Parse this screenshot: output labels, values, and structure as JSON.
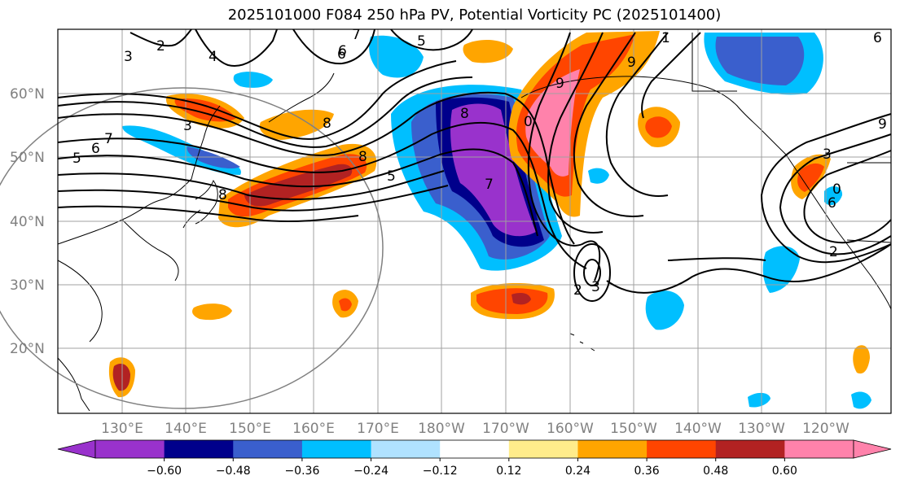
{
  "title": "2025101000 F084 250 hPa PV, Potential Vorticity PC (2025101400)",
  "map": {
    "lat_labels": [
      "60°N",
      "50°N",
      "40°N",
      "30°N",
      "20°N"
    ],
    "lon_labels": [
      "130°E",
      "140°E",
      "150°E",
      "160°E",
      "170°E",
      "180°W",
      "170°W",
      "160°W",
      "150°W",
      "140°W",
      "130°W",
      "120°W"
    ],
    "contour_labels": [
      "2",
      "3",
      "4",
      "5",
      "6",
      "7",
      "8",
      "9",
      "5",
      "6",
      "3",
      "8",
      "8",
      "9",
      "0",
      "7",
      "6",
      "2",
      "3",
      "2",
      "3",
      "6",
      "5",
      "7",
      "1",
      "0",
      "9",
      "8",
      "6"
    ],
    "colors": {
      "border": "#000000",
      "grid": "#a0a0a0",
      "coast": "#000000",
      "contour": "#000000"
    }
  },
  "colorbar": {
    "colors": [
      "#9932cc",
      "#00008b",
      "#3a5fcd",
      "#00bfff",
      "#b0e2ff",
      "#ffffff",
      "#ffec8b",
      "#ffa500",
      "#ff4500",
      "#b22222",
      "#ff82ab"
    ],
    "tick_labels": [
      "−0.60",
      "−0.48",
      "−0.36",
      "−0.24",
      "−0.12",
      "0.12",
      "0.24",
      "0.36",
      "0.48",
      "0.60"
    ]
  }
}
